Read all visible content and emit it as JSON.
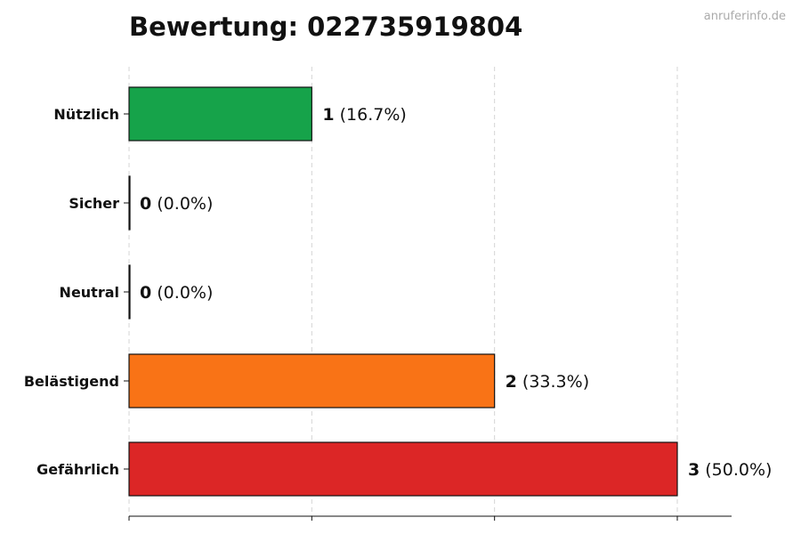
{
  "chart_data": {
    "type": "bar",
    "orientation": "horizontal",
    "title": "Bewertung: 022735919804",
    "watermark": "anruferinfo.de",
    "categories": [
      "Nützlich",
      "Sicher",
      "Neutral",
      "Belästigend",
      "Gefährlich"
    ],
    "values": [
      1,
      0,
      0,
      2,
      3
    ],
    "percent_labels": [
      "(16.7%)",
      "(0.0%)",
      "(0.0%)",
      "(33.3%)",
      "(50.0%)"
    ],
    "colors": [
      "#16a34a",
      "#2563eb",
      "#9ca3af",
      "#f97316",
      "#dc2626"
    ],
    "xlim": [
      0,
      3.3
    ],
    "grid": "vertical dashed",
    "x_tick_labels_visible": false
  }
}
